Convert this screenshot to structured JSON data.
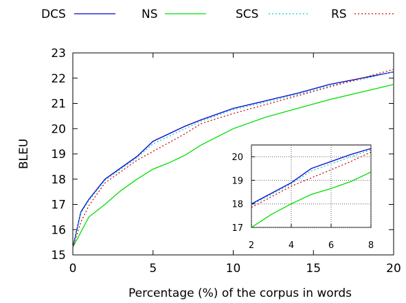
{
  "chart_data": {
    "type": "line",
    "xlabel": "Percentage (%) of the corpus in words",
    "ylabel": "BLEU",
    "xlim": [
      0,
      20
    ],
    "ylim": [
      15,
      23
    ],
    "x_ticks": [
      0,
      5,
      10,
      15,
      20
    ],
    "y_ticks": [
      15,
      16,
      17,
      18,
      19,
      20,
      21,
      22,
      23
    ],
    "grid": false,
    "legend_position": "top",
    "series": [
      {
        "name": "DCS",
        "color": "#0000cc",
        "style": "solid",
        "x": [
          0,
          0.5,
          1,
          2,
          3,
          4,
          5,
          6,
          7,
          8,
          10,
          12,
          14,
          16,
          18,
          20
        ],
        "y": [
          15.3,
          16.7,
          17.2,
          18.0,
          18.45,
          18.9,
          19.5,
          19.8,
          20.1,
          20.35,
          20.8,
          21.1,
          21.4,
          21.75,
          22.0,
          22.25
        ]
      },
      {
        "name": "NS",
        "color": "#00dd00",
        "style": "solid",
        "x": [
          0,
          0.5,
          1,
          2,
          3,
          4,
          5,
          6,
          7,
          8,
          10,
          12,
          14,
          16,
          18,
          20
        ],
        "y": [
          15.3,
          15.9,
          16.5,
          17.0,
          17.55,
          18.0,
          18.4,
          18.65,
          18.95,
          19.35,
          20.0,
          20.45,
          20.8,
          21.15,
          21.45,
          21.75
        ]
      },
      {
        "name": "SCS",
        "color": "#00cccc",
        "style": "dotted",
        "x": [
          0,
          0.5,
          1,
          2,
          3,
          4,
          5,
          6,
          7,
          8,
          10,
          12,
          14,
          16,
          18,
          20
        ],
        "y": [
          15.3,
          16.65,
          17.15,
          17.95,
          18.4,
          18.85,
          19.4,
          19.7,
          20.0,
          20.3,
          20.75,
          21.05,
          21.35,
          21.7,
          21.95,
          22.25
        ]
      },
      {
        "name": "RS",
        "color": "#cc0000",
        "style": "dotted",
        "x": [
          0,
          0.5,
          1,
          2,
          3,
          4,
          5,
          6,
          7,
          8,
          10,
          12,
          14,
          16,
          18,
          20
        ],
        "y": [
          15.3,
          16.3,
          16.95,
          17.85,
          18.3,
          18.75,
          19.1,
          19.45,
          19.8,
          20.2,
          20.6,
          20.95,
          21.3,
          21.65,
          22.0,
          22.35
        ]
      }
    ],
    "inset": {
      "xlim": [
        2,
        8
      ],
      "ylim": [
        17,
        20.5
      ],
      "x_ticks": [
        2,
        4,
        6,
        8
      ],
      "y_ticks": [
        17,
        18,
        19,
        20
      ],
      "grid": true
    }
  }
}
